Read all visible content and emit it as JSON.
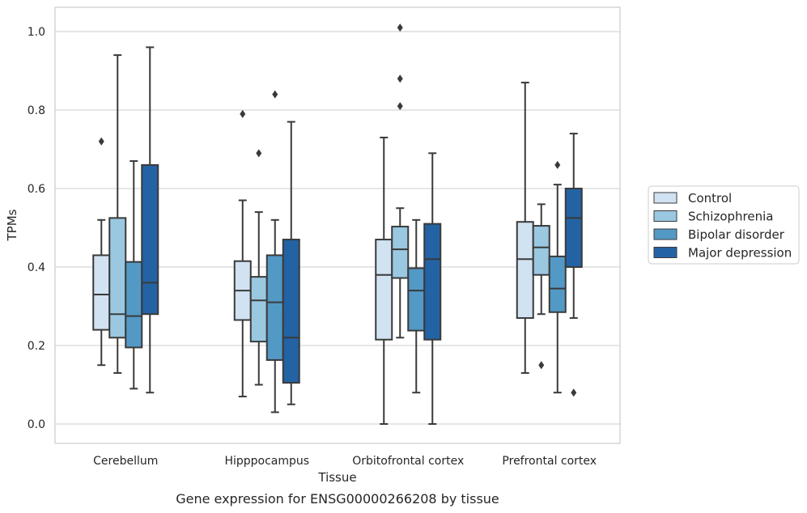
{
  "chart_data": {
    "type": "box",
    "title": "",
    "caption": "Gene expression for ENSG00000266208 by tissue",
    "xlabel": "Tissue",
    "ylabel": "TPMs",
    "ylim": [
      -0.05,
      1.06
    ],
    "yticks": [
      "0.0",
      "0.2",
      "0.4",
      "0.6",
      "0.8",
      "1.0"
    ],
    "grid": "horizontal",
    "legend_position": "right",
    "categories": [
      "Cerebellum",
      "Hipppocampus",
      "Orbitofrontal cortex",
      "Prefrontal cortex"
    ],
    "series": [
      {
        "name": "Control",
        "color": "#d1e2f2",
        "boxes": [
          {
            "whislo": 0.15,
            "q1": 0.24,
            "med": 0.33,
            "q3": 0.43,
            "whishi": 0.52,
            "fliers": [
              0.72
            ]
          },
          {
            "whislo": 0.07,
            "q1": 0.265,
            "med": 0.34,
            "q3": 0.415,
            "whishi": 0.57,
            "fliers": [
              0.79
            ]
          },
          {
            "whislo": 0.0,
            "q1": 0.215,
            "med": 0.38,
            "q3": 0.47,
            "whishi": 0.73,
            "fliers": []
          },
          {
            "whislo": 0.13,
            "q1": 0.27,
            "med": 0.42,
            "q3": 0.515,
            "whishi": 0.87,
            "fliers": []
          }
        ]
      },
      {
        "name": "Schizophrenia",
        "color": "#9ac8e0",
        "boxes": [
          {
            "whislo": 0.13,
            "q1": 0.22,
            "med": 0.28,
            "q3": 0.525,
            "whishi": 0.94,
            "fliers": []
          },
          {
            "whislo": 0.1,
            "q1": 0.21,
            "med": 0.315,
            "q3": 0.375,
            "whishi": 0.54,
            "fliers": [
              0.69
            ]
          },
          {
            "whislo": 0.22,
            "q1": 0.372,
            "med": 0.445,
            "q3": 0.503,
            "whishi": 0.55,
            "fliers": [
              0.81,
              0.88,
              1.01
            ]
          },
          {
            "whislo": 0.28,
            "q1": 0.38,
            "med": 0.45,
            "q3": 0.505,
            "whishi": 0.56,
            "fliers": [
              0.15
            ]
          }
        ]
      },
      {
        "name": "Bipolar disorder",
        "color": "#5399c6",
        "boxes": [
          {
            "whislo": 0.09,
            "q1": 0.195,
            "med": 0.275,
            "q3": 0.413,
            "whishi": 0.67,
            "fliers": []
          },
          {
            "whislo": 0.03,
            "q1": 0.163,
            "med": 0.31,
            "q3": 0.43,
            "whishi": 0.52,
            "fliers": [
              0.84
            ]
          },
          {
            "whislo": 0.08,
            "q1": 0.238,
            "med": 0.34,
            "q3": 0.397,
            "whishi": 0.52,
            "fliers": []
          },
          {
            "whislo": 0.08,
            "q1": 0.285,
            "med": 0.345,
            "q3": 0.427,
            "whishi": 0.61,
            "fliers": [
              0.66
            ]
          }
        ]
      },
      {
        "name": "Major depression",
        "color": "#2363a4",
        "boxes": [
          {
            "whislo": 0.08,
            "q1": 0.28,
            "med": 0.36,
            "q3": 0.66,
            "whishi": 0.96,
            "fliers": []
          },
          {
            "whislo": 0.05,
            "q1": 0.105,
            "med": 0.22,
            "q3": 0.47,
            "whishi": 0.77,
            "fliers": []
          },
          {
            "whislo": 0.0,
            "q1": 0.215,
            "med": 0.42,
            "q3": 0.51,
            "whishi": 0.69,
            "fliers": []
          },
          {
            "whislo": 0.27,
            "q1": 0.4,
            "med": 0.525,
            "q3": 0.6,
            "whishi": 0.74,
            "fliers": [
              0.08
            ]
          }
        ]
      }
    ]
  }
}
